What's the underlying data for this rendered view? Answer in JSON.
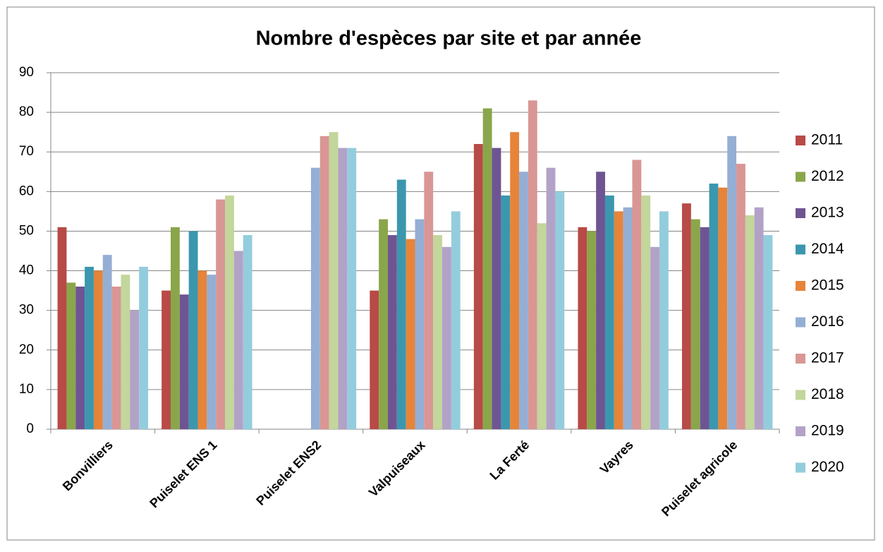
{
  "chart_data": {
    "type": "bar",
    "title": "Nombre d'espèces par site et par année",
    "categories": [
      "Bonvilliers",
      "Puiselet ENS 1",
      "Puiselet ENS2",
      "Valpuiseaux",
      "La Ferté",
      "Vayres",
      "Puiselet agricole"
    ],
    "series": [
      {
        "name": "2011",
        "color": "#b84a47",
        "values": [
          51,
          35,
          null,
          35,
          72,
          51,
          57
        ]
      },
      {
        "name": "2012",
        "color": "#8aa64a",
        "values": [
          37,
          51,
          null,
          53,
          81,
          50,
          53
        ]
      },
      {
        "name": "2013",
        "color": "#6f5493",
        "values": [
          36,
          34,
          null,
          49,
          71,
          65,
          51
        ]
      },
      {
        "name": "2014",
        "color": "#3b97ae",
        "values": [
          41,
          50,
          null,
          63,
          59,
          59,
          62
        ]
      },
      {
        "name": "2015",
        "color": "#e6843a",
        "values": [
          40,
          40,
          null,
          48,
          75,
          55,
          61
        ]
      },
      {
        "name": "2016",
        "color": "#95aed4",
        "values": [
          44,
          39,
          66,
          53,
          65,
          56,
          74
        ]
      },
      {
        "name": "2017",
        "color": "#d99694",
        "values": [
          36,
          58,
          74,
          65,
          83,
          68,
          67
        ]
      },
      {
        "name": "2018",
        "color": "#c3d69b",
        "values": [
          39,
          59,
          75,
          49,
          52,
          59,
          54
        ]
      },
      {
        "name": "2019",
        "color": "#b3a2c7",
        "values": [
          30,
          45,
          71,
          46,
          66,
          46,
          56
        ]
      },
      {
        "name": "2020",
        "color": "#93cddd",
        "values": [
          41,
          49,
          71,
          55,
          60,
          55,
          49
        ]
      }
    ],
    "ylim": [
      0,
      90
    ],
    "yticks": [
      0,
      10,
      20,
      30,
      40,
      50,
      60,
      70,
      80,
      90
    ],
    "grid": true,
    "legend": "right"
  }
}
